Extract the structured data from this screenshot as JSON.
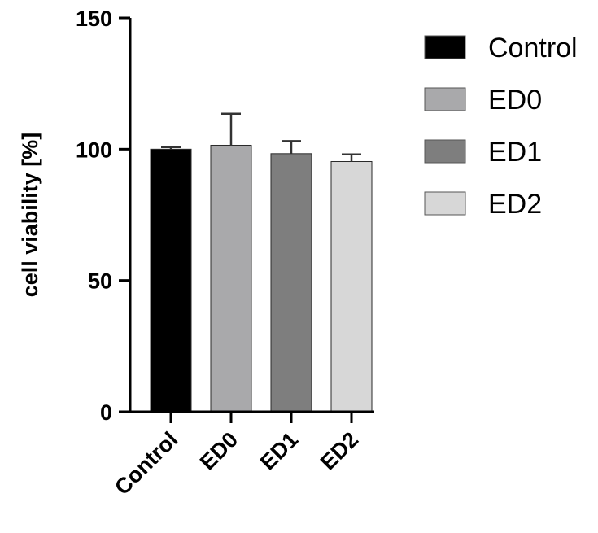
{
  "chart_data": {
    "type": "bar",
    "title": "",
    "xlabel": "",
    "ylabel": "cell viability [%]",
    "ylim": [
      0,
      150
    ],
    "yticks": [
      0,
      50,
      100,
      150
    ],
    "grid": false,
    "legend_position": "top-right",
    "categories": [
      "Control",
      "ED0",
      "ED1",
      "ED2"
    ],
    "values": [
      100,
      101.5,
      98.3,
      95.3
    ],
    "errors": [
      0.8,
      12.0,
      4.8,
      2.7
    ],
    "colors": [
      "#000000",
      "#a9a9ab",
      "#7e7e7e",
      "#d7d7d7"
    ],
    "legend": [
      {
        "label": "Control",
        "color": "#000000"
      },
      {
        "label": "ED0",
        "color": "#a9a9ab"
      },
      {
        "label": "ED1",
        "color": "#7e7e7e"
      },
      {
        "label": "ED2",
        "color": "#d7d7d7"
      }
    ]
  }
}
